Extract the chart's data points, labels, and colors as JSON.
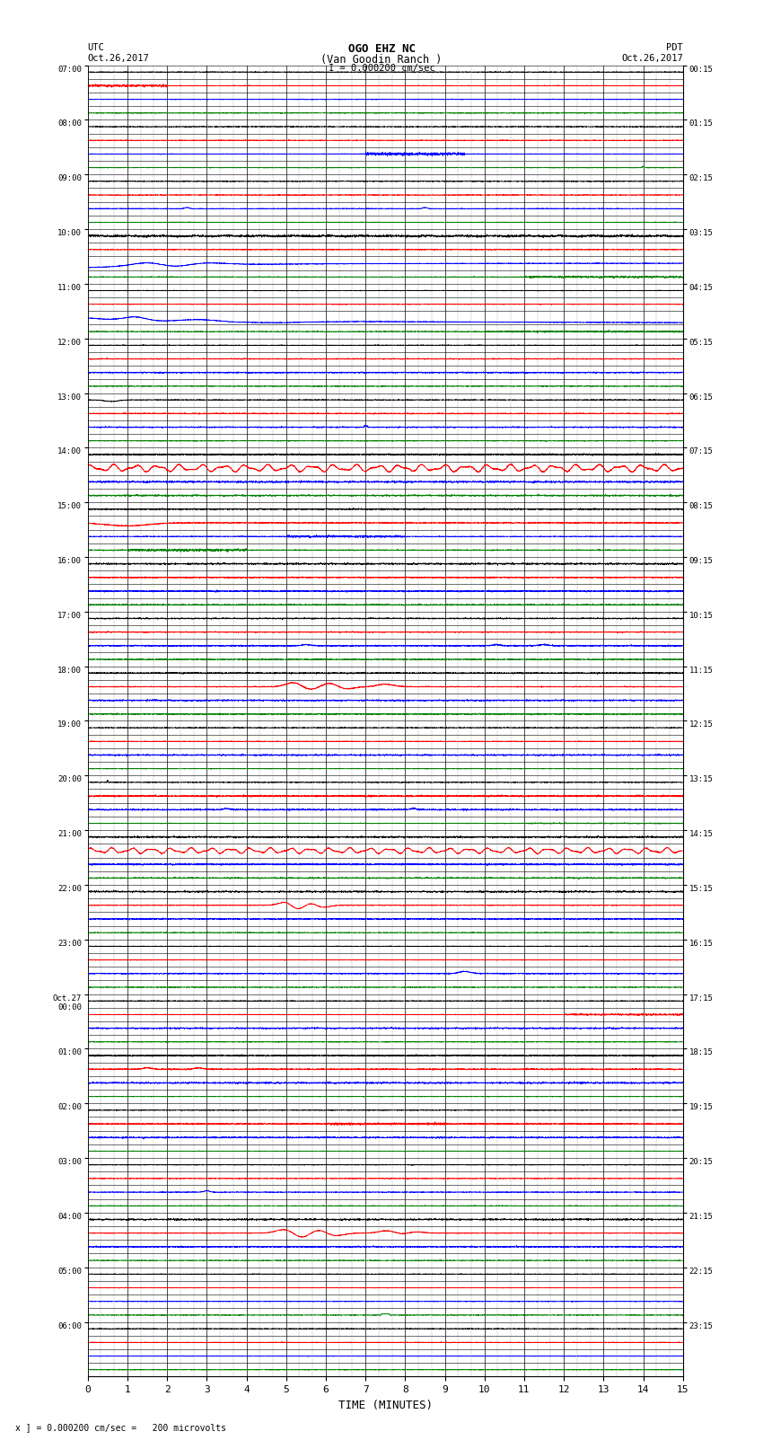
{
  "title_line1": "OGO EHZ NC",
  "title_line2": "(Van Goodin Ranch )",
  "scale_label": "I = 0.000200 cm/sec",
  "utc_label": "UTC",
  "utc_date": "Oct.26,2017",
  "pdt_label": "PDT",
  "pdt_date": "Oct.26,2017",
  "xlabel": "TIME (MINUTES)",
  "footer": "x ] = 0.000200 cm/sec =   200 microvolts",
  "xlim": [
    0,
    15
  ],
  "xticks": [
    0,
    1,
    2,
    3,
    4,
    5,
    6,
    7,
    8,
    9,
    10,
    11,
    12,
    13,
    14,
    15
  ],
  "fig_width": 8.5,
  "fig_height": 16.13,
  "dpi": 100,
  "num_rows": 96,
  "bg_color": "#ffffff",
  "utc_times_labeled": {
    "0": "07:00",
    "4": "08:00",
    "8": "09:00",
    "12": "10:00",
    "16": "11:00",
    "20": "12:00",
    "24": "13:00",
    "28": "14:00",
    "32": "15:00",
    "36": "16:00",
    "40": "17:00",
    "44": "18:00",
    "48": "19:00",
    "52": "20:00",
    "56": "21:00",
    "60": "22:00",
    "64": "23:00",
    "68": "Oct.27\n00:00",
    "72": "01:00",
    "76": "02:00",
    "80": "03:00",
    "84": "04:00",
    "88": "05:00",
    "92": "06:00"
  },
  "pdt_times_labeled": {
    "0": "00:15",
    "4": "01:15",
    "8": "02:15",
    "12": "03:15",
    "16": "04:15",
    "20": "05:15",
    "24": "06:15",
    "28": "07:15",
    "32": "08:15",
    "36": "09:15",
    "40": "10:15",
    "44": "11:15",
    "48": "12:15",
    "52": "13:15",
    "56": "14:15",
    "60": "15:15",
    "64": "16:15",
    "68": "17:15",
    "72": "18:15",
    "76": "19:15",
    "80": "20:15",
    "84": "21:15",
    "88": "22:15",
    "92": "23:15"
  },
  "trace_colors_4cycle": [
    "black",
    "red",
    "blue",
    "green"
  ]
}
